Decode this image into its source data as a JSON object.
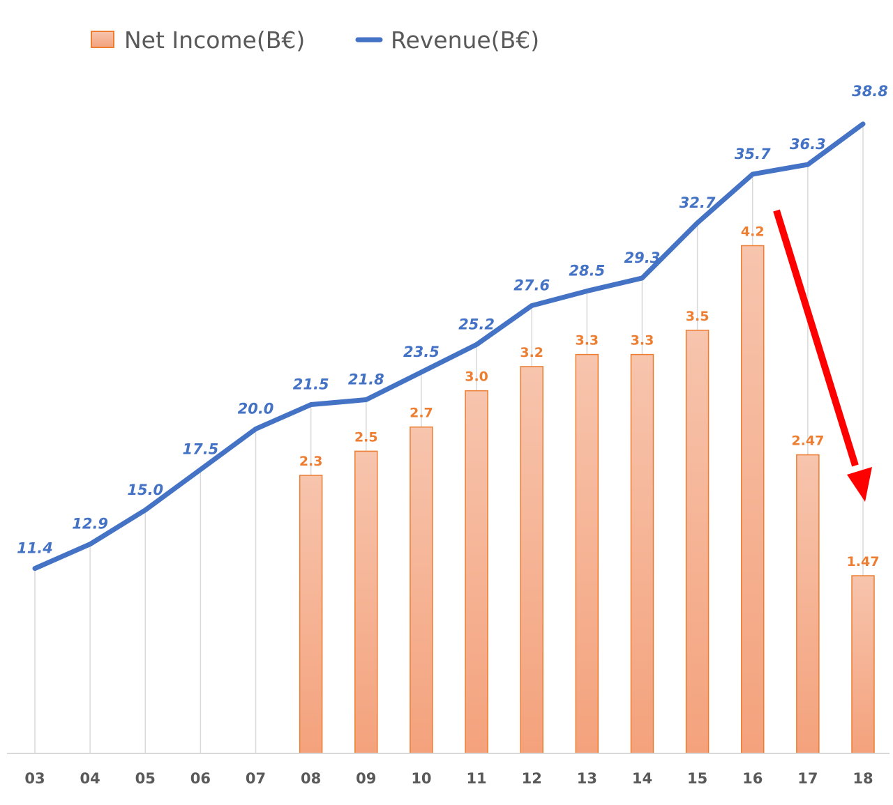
{
  "chart_data": {
    "type": "bar+line",
    "title": "",
    "xlabel": "",
    "ylabel": "",
    "categories": [
      "03",
      "04",
      "05",
      "06",
      "07",
      "08",
      "09",
      "10",
      "11",
      "12",
      "13",
      "14",
      "15",
      "16",
      "17",
      "18"
    ],
    "series": [
      {
        "name": "Net Income(B€)",
        "type": "bar",
        "axis": "secondary",
        "values": [
          null,
          null,
          null,
          null,
          null,
          2.3,
          2.5,
          2.7,
          3.0,
          3.2,
          3.3,
          3.3,
          3.5,
          4.2,
          2.47,
          1.47
        ],
        "labels": [
          "",
          "",
          "",
          "",
          "",
          "2.3",
          "2.5",
          "2.7",
          "3.0",
          "3.2",
          "3.3",
          "3.3",
          "3.5",
          "4.2",
          "2.47",
          "1.47"
        ],
        "color": "#f4b183"
      },
      {
        "name": "Revenue(B€)",
        "type": "line",
        "axis": "primary",
        "values": [
          11.4,
          12.9,
          15.0,
          17.5,
          20.0,
          21.5,
          21.8,
          23.5,
          25.2,
          27.6,
          28.5,
          29.3,
          32.7,
          35.7,
          36.3,
          38.8
        ],
        "labels": [
          "11.4",
          "12.9",
          "15.0",
          "17.5",
          "20.0",
          "21.5",
          "21.8",
          "23.5",
          "25.2",
          "27.6",
          "28.5",
          "29.3",
          "32.7",
          "35.7",
          "36.3",
          "38.8"
        ],
        "color": "#4472c4"
      }
    ],
    "ylim_primary": [
      0,
      42.1
    ],
    "ylim_secondary": [
      0,
      5.65
    ],
    "grid": false,
    "drop_lines": true,
    "legend_position": "top-left",
    "annotations": [
      {
        "type": "arrow",
        "color": "#ff0000",
        "from_category": "16",
        "to_category": "18",
        "meaning": "net income decline"
      }
    ]
  },
  "colors": {
    "bar_fill_top": "#f7c4ad",
    "bar_fill_bottom": "#f4a27c",
    "bar_stroke": "#ed7d31",
    "line": "#4472c4",
    "arrow": "#ff0000",
    "axis": "#d9d9d9"
  }
}
